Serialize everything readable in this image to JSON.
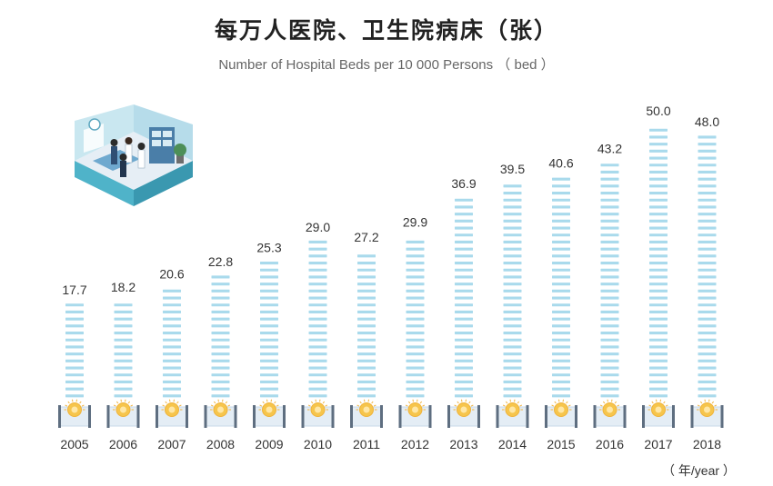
{
  "title": "每万人医院、卫生院病床（张）",
  "subtitle": "Number of Hospital Beds per 10 000 Persons （ bed ）",
  "unit_label": "（ 年/year ）",
  "colors": {
    "bar": "#a9daec",
    "base": "#c8d9e8",
    "coin": "#f6c54c",
    "text": "#333333"
  },
  "illustration": {
    "icon": "hospital-room-icon"
  },
  "chart_data": {
    "type": "bar",
    "title": "每万人医院、卫生院病床（张）",
    "subtitle": "Number of Hospital Beds per 10 000 Persons （ bed ）",
    "xlabel": "（ 年/year ）",
    "ylabel": "",
    "categories": [
      "2005",
      "2006",
      "2007",
      "2008",
      "2009",
      "2010",
      "2011",
      "2012",
      "2013",
      "2014",
      "2015",
      "2016",
      "2017",
      "2018"
    ],
    "values": [
      17.7,
      18.2,
      20.6,
      22.8,
      25.3,
      29.0,
      27.2,
      29.9,
      36.9,
      39.5,
      40.6,
      43.2,
      50.0,
      48.0
    ],
    "value_labels": [
      "17.7",
      "18.2",
      "20.6",
      "22.8",
      "25.3",
      "29.0",
      "27.2",
      "29.9",
      "36.9",
      "39.5",
      "40.6",
      "43.2",
      "50.0",
      "48.0"
    ],
    "ylim": [
      0,
      50
    ],
    "grid": false,
    "legend": "none"
  }
}
